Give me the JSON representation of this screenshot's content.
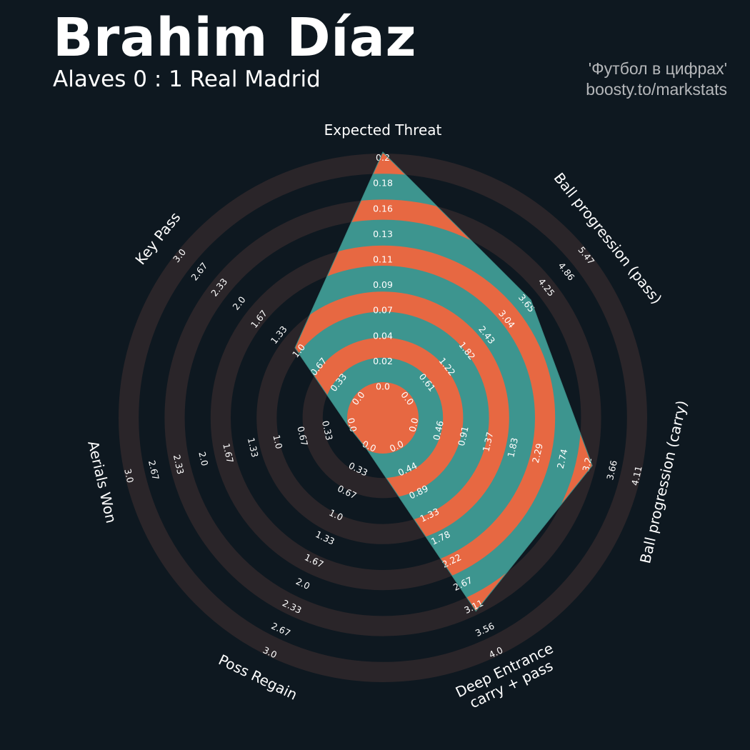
{
  "header": {
    "title": "Brahim Díaz",
    "subtitle": "Alaves 0 : 1 Real Madrid",
    "credit_line1": "'Футбол в цифрах'",
    "credit_line2": "boosty.to/markstats"
  },
  "colors": {
    "background": "#0e1820",
    "ring": "#2a2529",
    "player_fill": "#3d958f",
    "band_fill": "#e76842",
    "text": "#ffffff"
  },
  "chart_data": {
    "type": "radar",
    "rings": 5,
    "parameters": [
      {
        "label_lines": [
          "Expected Threat"
        ],
        "value": 0.2,
        "ticks": [
          "0.0",
          "0.02",
          "0.04",
          "0.07",
          "0.09",
          "0.11",
          "0.13",
          "0.16",
          "0.18",
          "0.2"
        ]
      },
      {
        "label_lines": [
          "Ball progression (pass)"
        ],
        "value": 3.65,
        "ticks": [
          "0.0",
          "0.61",
          "1.22",
          "1.82",
          "2.43",
          "3.04",
          "3.65",
          "4.25",
          "4.86",
          "5.47"
        ]
      },
      {
        "label_lines": [
          "Ball progression (carry)"
        ],
        "value": 3.2,
        "ticks": [
          "0.0",
          "0.46",
          "0.91",
          "1.37",
          "1.83",
          "2.29",
          "2.74",
          "3.2",
          "3.66",
          "4.11"
        ]
      },
      {
        "label_lines": [
          "Deep Entrance",
          "carry + pass"
        ],
        "value": 3.11,
        "ticks": [
          "0.0",
          "0.44",
          "0.89",
          "1.33",
          "1.78",
          "2.22",
          "2.67",
          "3.11",
          "3.56",
          "4.0"
        ]
      },
      {
        "label_lines": [
          "Poss Regain"
        ],
        "value": 0.0,
        "ticks": [
          "0.0",
          "0.33",
          "0.67",
          "1.0",
          "1.33",
          "1.67",
          "2.0",
          "2.33",
          "2.67",
          "3.0"
        ]
      },
      {
        "label_lines": [
          "Aerials Won"
        ],
        "value": 0.0,
        "ticks": [
          "0.0",
          "0.33",
          "0.67",
          "1.0",
          "1.33",
          "1.67",
          "2.0",
          "2.33",
          "2.67",
          "3.0"
        ]
      },
      {
        "label_lines": [
          "Key Pass"
        ],
        "value": 1.0,
        "ticks": [
          "0.0",
          "0.33",
          "0.67",
          "1.0",
          "1.33",
          "1.67",
          "2.0",
          "2.33",
          "2.67",
          "3.0"
        ]
      }
    ]
  }
}
